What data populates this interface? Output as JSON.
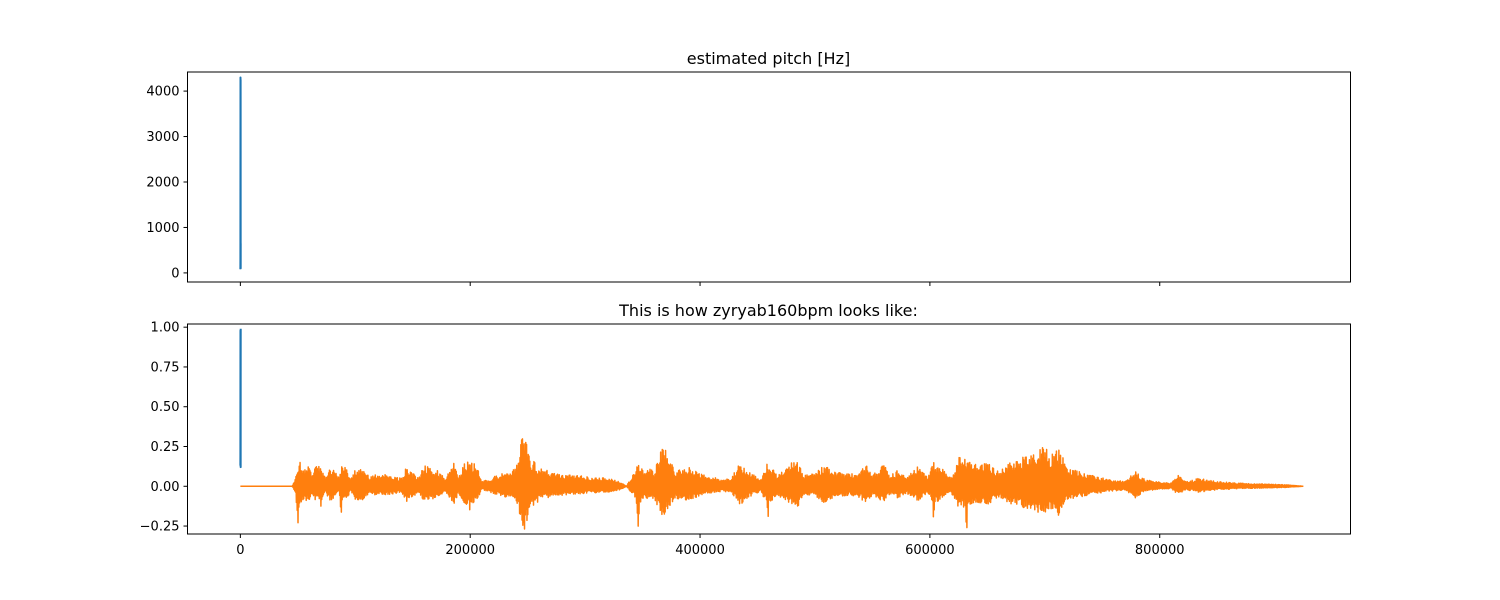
{
  "chart_data": [
    {
      "type": "line",
      "title": "estimated pitch [Hz]",
      "xlabel": "",
      "ylabel": "",
      "xlim": [
        -46000,
        966000
      ],
      "ylim": [
        -200,
        4420
      ],
      "x_ticks": [
        0,
        200000,
        400000,
        600000,
        800000
      ],
      "y_ticks": [
        0,
        1000,
        2000,
        3000,
        4000
      ],
      "y_tick_labels": [
        "0",
        "1000",
        "2000",
        "3000",
        "4000"
      ],
      "show_x_tick_labels": false,
      "grid": false,
      "series": [
        {
          "color": "#1f77b4",
          "x_range": [
            0,
            300
          ],
          "values": [
            80,
            150,
            260,
            700,
            1800,
            3000,
            4300,
            3900,
            2500,
            900,
            200,
            120,
            4250,
            3500,
            1200,
            300,
            100,
            650
          ]
        }
      ]
    },
    {
      "type": "line",
      "title": "This is how zyryab160bpm looks like:",
      "xlabel": "",
      "ylabel": "",
      "xlim": [
        -46000,
        966000
      ],
      "ylim": [
        -0.3,
        1.02
      ],
      "x_ticks": [
        0,
        200000,
        400000,
        600000,
        800000
      ],
      "x_tick_labels": [
        "0",
        "200000",
        "400000",
        "600000",
        "800000"
      ],
      "y_ticks": [
        -0.25,
        0,
        0.25,
        0.5,
        0.75,
        1.0
      ],
      "y_tick_labels": [
        "−0.25",
        "0.00",
        "0.25",
        "0.50",
        "0.75",
        "1.00"
      ],
      "grid": false,
      "series": [
        {
          "color": "#1f77b4",
          "x_range": [
            0,
            300
          ],
          "values": [
            0.13,
            0.2,
            0.45,
            0.8,
            0.98,
            0.95,
            0.6,
            0.25,
            0.15,
            0.97,
            0.9,
            0.4,
            0.12,
            0.75,
            0.99
          ]
        },
        {
          "color": "#ff7f0e",
          "type": "waveform-envelope",
          "samples": 925000,
          "envelope": [
            [
              0,
              0.0
            ],
            [
              45000,
              0.0
            ],
            [
              48000,
              0.05
            ],
            [
              50000,
              0.15
            ],
            [
              52000,
              0.16
            ],
            [
              55000,
              0.12
            ],
            [
              60000,
              0.13
            ],
            [
              62000,
              0.06
            ],
            [
              66000,
              0.13
            ],
            [
              70000,
              0.12
            ],
            [
              74000,
              0.05
            ],
            [
              78000,
              0.12
            ],
            [
              82000,
              0.1
            ],
            [
              86000,
              0.05
            ],
            [
              88000,
              0.14
            ],
            [
              92000,
              0.12
            ],
            [
              96000,
              0.04
            ],
            [
              100000,
              0.11
            ],
            [
              106000,
              0.12
            ],
            [
              112000,
              0.06
            ],
            [
              120000,
              0.08
            ],
            [
              130000,
              0.07
            ],
            [
              140000,
              0.05
            ],
            [
              145000,
              0.13
            ],
            [
              150000,
              0.09
            ],
            [
              155000,
              0.05
            ],
            [
              160000,
              0.13
            ],
            [
              170000,
              0.11
            ],
            [
              178000,
              0.05
            ],
            [
              186000,
              0.15
            ],
            [
              190000,
              0.06
            ],
            [
              196000,
              0.16
            ],
            [
              200000,
              0.17
            ],
            [
              206000,
              0.12
            ],
            [
              210000,
              0.03
            ],
            [
              215000,
              0.04
            ],
            [
              220000,
              0.06
            ],
            [
              232000,
              0.1
            ],
            [
              240000,
              0.12
            ],
            [
              245000,
              0.32
            ],
            [
              247000,
              0.4
            ],
            [
              252000,
              0.18
            ],
            [
              262000,
              0.11
            ],
            [
              275000,
              0.08
            ],
            [
              290000,
              0.07
            ],
            [
              305000,
              0.06
            ],
            [
              320000,
              0.05
            ],
            [
              330000,
              0.03
            ],
            [
              336000,
              0.0
            ],
            [
              342000,
              0.08
            ],
            [
              346000,
              0.15
            ],
            [
              350000,
              0.12
            ],
            [
              360000,
              0.1
            ],
            [
              367000,
              0.25
            ],
            [
              370000,
              0.24
            ],
            [
              378000,
              0.1
            ],
            [
              390000,
              0.12
            ],
            [
              400000,
              0.08
            ],
            [
              410000,
              0.06
            ],
            [
              420000,
              0.04
            ],
            [
              428000,
              0.06
            ],
            [
              434000,
              0.15
            ],
            [
              437000,
              0.12
            ],
            [
              447000,
              0.07
            ],
            [
              453000,
              0.05
            ],
            [
              459000,
              0.16
            ],
            [
              467000,
              0.07
            ],
            [
              478000,
              0.15
            ],
            [
              485000,
              0.16
            ],
            [
              490000,
              0.07
            ],
            [
              500000,
              0.08
            ],
            [
              508000,
              0.14
            ],
            [
              515000,
              0.1
            ],
            [
              525000,
              0.08
            ],
            [
              536000,
              0.08
            ],
            [
              545000,
              0.15
            ],
            [
              550000,
              0.07
            ],
            [
              560000,
              0.14
            ],
            [
              565000,
              0.07
            ],
            [
              572000,
              0.1
            ],
            [
              580000,
              0.06
            ],
            [
              590000,
              0.13
            ],
            [
              598000,
              0.06
            ],
            [
              603000,
              0.15
            ],
            [
              610000,
              0.12
            ],
            [
              618000,
              0.05
            ],
            [
              625000,
              0.18
            ],
            [
              632000,
              0.19
            ],
            [
              640000,
              0.14
            ],
            [
              650000,
              0.17
            ],
            [
              660000,
              0.09
            ],
            [
              672000,
              0.16
            ],
            [
              680000,
              0.18
            ],
            [
              690000,
              0.2
            ],
            [
              696000,
              0.24
            ],
            [
              700000,
              0.25
            ],
            [
              705000,
              0.2
            ],
            [
              712000,
              0.24
            ],
            [
              720000,
              0.12
            ],
            [
              735000,
              0.08
            ],
            [
              745000,
              0.06
            ],
            [
              760000,
              0.04
            ],
            [
              770000,
              0.03
            ],
            [
              779000,
              0.1
            ],
            [
              785000,
              0.05
            ],
            [
              795000,
              0.03
            ],
            [
              810000,
              0.02
            ],
            [
              816000,
              0.07
            ],
            [
              822000,
              0.03
            ],
            [
              834000,
              0.05
            ],
            [
              850000,
              0.03
            ],
            [
              870000,
              0.02
            ],
            [
              890000,
              0.015
            ],
            [
              910000,
              0.01
            ],
            [
              925000,
              0.0
            ]
          ],
          "negative_peaks": [
            [
              50000,
              -0.25
            ],
            [
              70000,
              -0.13
            ],
            [
              88000,
              -0.2
            ],
            [
              186000,
              -0.14
            ],
            [
              200000,
              -0.19
            ],
            [
              247000,
              -0.25
            ],
            [
              346000,
              -0.27
            ],
            [
              370000,
              -0.18
            ],
            [
              437000,
              -0.18
            ],
            [
              459000,
              -0.25
            ],
            [
              485000,
              -0.2
            ],
            [
              603000,
              -0.22
            ],
            [
              632000,
              -0.3
            ],
            [
              700000,
              -0.18
            ],
            [
              712000,
              -0.2
            ]
          ]
        }
      ]
    }
  ]
}
